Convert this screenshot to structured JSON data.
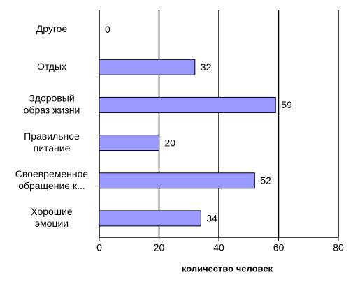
{
  "chart_data": {
    "type": "barh",
    "categories": [
      [
        "Другое"
      ],
      [
        "Отдых"
      ],
      [
        "Здоровый",
        "образ жизни"
      ],
      [
        "Правильное",
        "питание"
      ],
      [
        "Своевременное",
        "обращение  к..."
      ],
      [
        "Хорошие",
        "эмоции"
      ]
    ],
    "values": [
      0,
      32,
      59,
      20,
      52,
      34
    ],
    "color": "#9999ff",
    "xlabel": "количество человек",
    "xlim": [
      0,
      80
    ],
    "xticks": [
      0,
      20,
      40,
      60,
      80
    ],
    "grid": true
  }
}
